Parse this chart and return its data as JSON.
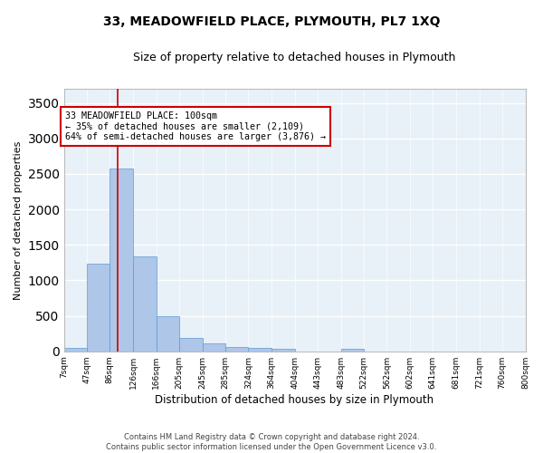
{
  "title": "33, MEADOWFIELD PLACE, PLYMOUTH, PL7 1XQ",
  "subtitle": "Size of property relative to detached houses in Plymouth",
  "xlabel": "Distribution of detached houses by size in Plymouth",
  "ylabel": "Number of detached properties",
  "bar_color": "#aec6e8",
  "bar_edge_color": "#5b9bd5",
  "background_color": "#e8f0f8",
  "grid_color": "#ffffff",
  "bins": [
    7,
    47,
    86,
    126,
    166,
    205,
    245,
    285,
    324,
    364,
    404,
    443,
    483,
    522,
    562,
    602,
    641,
    681,
    721,
    760,
    800
  ],
  "bin_labels": [
    "7sqm",
    "47sqm",
    "86sqm",
    "126sqm",
    "166sqm",
    "205sqm",
    "245sqm",
    "285sqm",
    "324sqm",
    "364sqm",
    "404sqm",
    "443sqm",
    "483sqm",
    "522sqm",
    "562sqm",
    "602sqm",
    "641sqm",
    "681sqm",
    "721sqm",
    "760sqm",
    "800sqm"
  ],
  "bar_heights": [
    50,
    1230,
    2580,
    1340,
    500,
    190,
    105,
    55,
    45,
    30,
    0,
    0,
    30,
    0,
    0,
    0,
    0,
    0,
    0,
    0
  ],
  "ylim": [
    0,
    3700
  ],
  "yticks": [
    0,
    500,
    1000,
    1500,
    2000,
    2500,
    3000,
    3500
  ],
  "property_line_x": 100,
  "property_line_color": "#cc0000",
  "annotation_text": "33 MEADOWFIELD PLACE: 100sqm\n← 35% of detached houses are smaller (2,109)\n64% of semi-detached houses are larger (3,876) →",
  "annotation_box_color": "#cc0000",
  "footer_line1": "Contains HM Land Registry data © Crown copyright and database right 2024.",
  "footer_line2": "Contains public sector information licensed under the Open Government Licence v3.0."
}
